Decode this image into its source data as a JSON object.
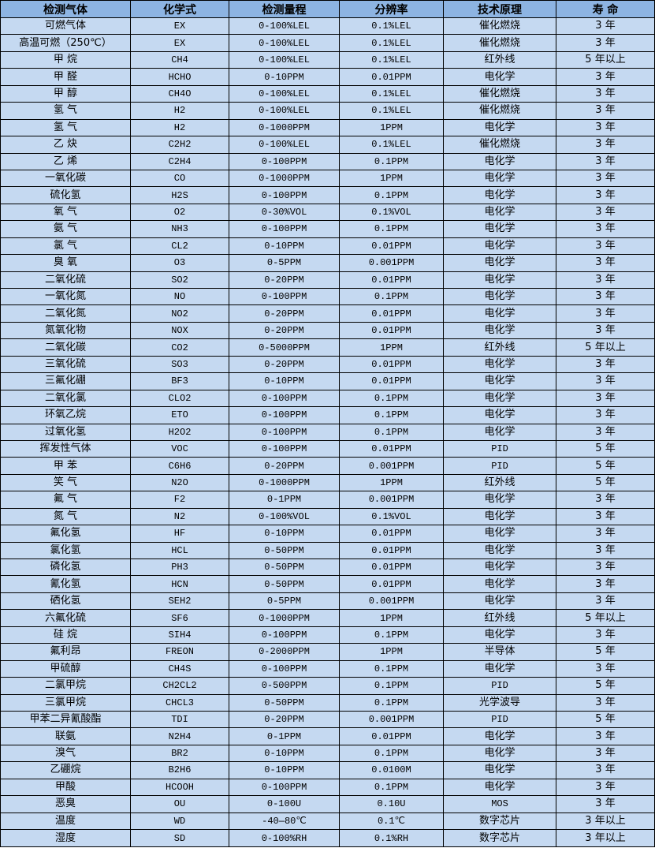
{
  "colors": {
    "header_bg": "#8db4e2",
    "row_bg": "#c5d9f1",
    "border": "#000000"
  },
  "table": {
    "headers": [
      "检测气体",
      "化学式",
      "检测量程",
      "分辨率",
      "技术原理",
      "寿 命"
    ],
    "rows": [
      [
        "可燃气体",
        "EX",
        "0-100%LEL",
        "0.1%LEL",
        "催化燃烧",
        "3 年"
      ],
      [
        "高温可燃（250℃）",
        "EX",
        "0-100%LEL",
        "0.1%LEL",
        "催化燃烧",
        "3 年"
      ],
      [
        "甲 烷",
        "CH4",
        "0-100%LEL",
        "0.1%LEL",
        "红外线",
        "5 年以上"
      ],
      [
        "甲 醛",
        "HCHO",
        "0-10PPM",
        "0.01PPM",
        "电化学",
        "3 年"
      ],
      [
        "甲 醇",
        "CH4O",
        "0-100%LEL",
        "0.1%LEL",
        "催化燃烧",
        "3 年"
      ],
      [
        "氢 气",
        "H2",
        "0-100%LEL",
        "0.1%LEL",
        "催化燃烧",
        "3 年"
      ],
      [
        "氢 气",
        "H2",
        "0-1000PPM",
        "1PPM",
        "电化学",
        "3 年"
      ],
      [
        "乙 炔",
        "C2H2",
        "0-100%LEL",
        "0.1%LEL",
        "催化燃烧",
        "3 年"
      ],
      [
        "乙 烯",
        "C2H4",
        "0-100PPM",
        "0.1PPM",
        "电化学",
        "3 年"
      ],
      [
        "一氧化碳",
        "CO",
        "0-1000PPM",
        "1PPM",
        "电化学",
        "3 年"
      ],
      [
        "硫化氢",
        "H2S",
        "0-100PPM",
        "0.1PPM",
        "电化学",
        "3 年"
      ],
      [
        "氧 气",
        "O2",
        "0-30%VOL",
        "0.1%VOL",
        "电化学",
        "3 年"
      ],
      [
        "氨 气",
        "NH3",
        "0-100PPM",
        "0.1PPM",
        "电化学",
        "3 年"
      ],
      [
        "氯 气",
        "CL2",
        "0-10PPM",
        "0.01PPM",
        "电化学",
        "3 年"
      ],
      [
        "臭 氧",
        "O3",
        "0-5PPM",
        "0.001PPM",
        "电化学",
        "3 年"
      ],
      [
        "二氧化硫",
        "SO2",
        "0-20PPM",
        "0.01PPM",
        "电化学",
        "3 年"
      ],
      [
        "一氧化氮",
        "NO",
        "0-100PPM",
        "0.1PPM",
        "电化学",
        "3 年"
      ],
      [
        "二氧化氮",
        "NO2",
        "0-20PPM",
        "0.01PPM",
        "电化学",
        "3 年"
      ],
      [
        "氮氧化物",
        "NOX",
        "0-20PPM",
        "0.01PPM",
        "电化学",
        "3 年"
      ],
      [
        "二氧化碳",
        "CO2",
        "0-5000PPM",
        "1PPM",
        "红外线",
        "5 年以上"
      ],
      [
        "三氧化硫",
        "SO3",
        "0-20PPM",
        "0.01PPM",
        "电化学",
        "3 年"
      ],
      [
        "三氟化硼",
        "BF3",
        "0-10PPM",
        "0.01PPM",
        "电化学",
        "3 年"
      ],
      [
        "二氧化氯",
        "CLO2",
        "0-100PPM",
        "0.1PPM",
        "电化学",
        "3 年"
      ],
      [
        "环氧乙烷",
        "ETO",
        "0-100PPM",
        "0.1PPM",
        "电化学",
        "3 年"
      ],
      [
        "过氧化氢",
        "H2O2",
        "0-100PPM",
        "0.1PPM",
        "电化学",
        "3 年"
      ],
      [
        "挥发性气体",
        "VOC",
        "0-100PPM",
        "0.01PPM",
        "PID",
        "5 年"
      ],
      [
        "甲 苯",
        "C6H6",
        "0-20PPM",
        "0.001PPM",
        "PID",
        "5 年"
      ],
      [
        "笑 气",
        "N2O",
        "0-1000PPM",
        "1PPM",
        "红外线",
        "5 年"
      ],
      [
        "氟 气",
        "F2",
        "0-1PPM",
        "0.001PPM",
        "电化学",
        "3 年"
      ],
      [
        "氮 气",
        "N2",
        "0-100%VOL",
        "0.1%VOL",
        "电化学",
        "3 年"
      ],
      [
        "氟化氢",
        "HF",
        "0-10PPM",
        "0.01PPM",
        "电化学",
        "3 年"
      ],
      [
        "氯化氢",
        "HCL",
        "0-50PPM",
        "0.01PPM",
        "电化学",
        "3 年"
      ],
      [
        "磷化氢",
        "PH3",
        "0-50PPM",
        "0.01PPM",
        "电化学",
        "3 年"
      ],
      [
        "氰化氢",
        "HCN",
        "0-50PPM",
        "0.01PPM",
        "电化学",
        "3 年"
      ],
      [
        "硒化氢",
        "SEH2",
        "0-5PPM",
        "0.001PPM",
        "电化学",
        "3 年"
      ],
      [
        "六氟化硫",
        "SF6",
        "0-1000PPM",
        "1PPM",
        "红外线",
        "5 年以上"
      ],
      [
        "硅 烷",
        "SIH4",
        "0-100PPM",
        "0.1PPM",
        "电化学",
        "3 年"
      ],
      [
        "氟利昂",
        "FREON",
        "0-2000PPM",
        "1PPM",
        "半导体",
        "5 年"
      ],
      [
        "甲硫醇",
        "CH4S",
        "0-100PPM",
        "0.1PPM",
        "电化学",
        "3 年"
      ],
      [
        "二氯甲烷",
        "CH2CL2",
        "0-500PPM",
        "0.1PPM",
        "PID",
        "5 年"
      ],
      [
        "三氯甲烷",
        "CHCL3",
        "0-50PPM",
        "0.1PPM",
        "光学波导",
        "3 年"
      ],
      [
        "甲苯二异氰酸酯",
        "TDI",
        "0-20PPM",
        "0.001PPM",
        "PID",
        "5 年"
      ],
      [
        "联氨",
        "N2H4",
        "0-1PPM",
        "0.01PPM",
        "电化学",
        "3 年"
      ],
      [
        "溴气",
        "BR2",
        "0-10PPM",
        "0.1PPM",
        "电化学",
        "3 年"
      ],
      [
        "乙硼烷",
        "B2H6",
        "0-10PPM",
        "0.0100M",
        "电化学",
        "3 年"
      ],
      [
        "甲酸",
        "HCOOH",
        "0-100PPM",
        "0.1PPM",
        "电化学",
        "3 年"
      ],
      [
        "恶臭",
        "OU",
        "0-100U",
        "0.10U",
        "MOS",
        "3 年"
      ],
      [
        "温度",
        "WD",
        "-40—80℃",
        "0.1℃",
        "数字芯片",
        "3 年以上"
      ],
      [
        "湿度",
        "SD",
        "0-100%RH",
        "0.1%RH",
        "数字芯片",
        "3 年以上"
      ]
    ]
  }
}
